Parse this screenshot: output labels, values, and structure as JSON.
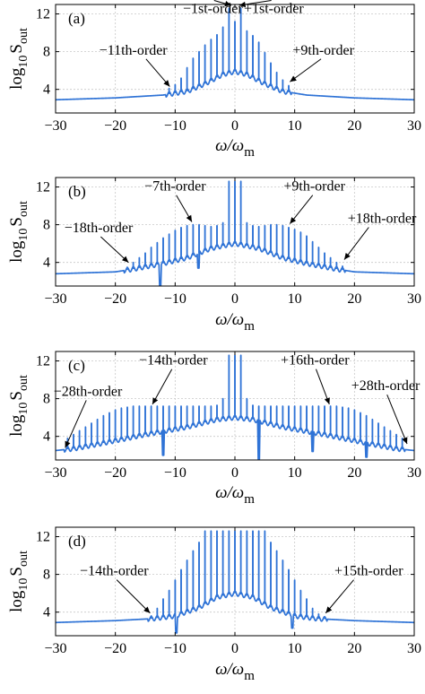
{
  "figure": {
    "ylabel_main": "log",
    "ylabel_sub": "10",
    "ylabel_S": "S",
    "ylabel_S_sub": "out",
    "xlabel_omega": "ω/ω",
    "xlabel_sub": "m"
  },
  "chart_data": [
    {
      "type": "line",
      "panel_label": "(a)",
      "xlim": [
        -30,
        30
      ],
      "ylim": [
        1.5,
        13
      ],
      "xticks": [
        "-30",
        "-20",
        "-10",
        "0",
        "10",
        "20",
        "30"
      ],
      "yticks": [
        "4",
        "8",
        "12"
      ],
      "grid": true,
      "series": [
        {
          "baseline": {
            "x": [
              -30,
              -20,
              -12,
              -8,
              -5,
              -2,
              0,
              2,
              5,
              8,
              12,
              20,
              30
            ],
            "y": [
              2.9,
              3.1,
              3.4,
              3.8,
              4.6,
              5.6,
              5.9,
              5.6,
              4.6,
              3.8,
              3.4,
              3.1,
              2.9
            ]
          },
          "peaks": [
            {
              "order": -11,
              "y": 4.1
            },
            {
              "order": -10,
              "y": 4.5
            },
            {
              "order": -9,
              "y": 5.2
            },
            {
              "order": -8,
              "y": 6.3
            },
            {
              "order": -7,
              "y": 7.3
            },
            {
              "order": -6,
              "y": 8.0
            },
            {
              "order": -5,
              "y": 8.7
            },
            {
              "order": -4,
              "y": 9.3
            },
            {
              "order": -3,
              "y": 9.8
            },
            {
              "order": -2,
              "y": 10.6
            },
            {
              "order": -1,
              "y": 12.6
            },
            {
              "order": 0,
              "y": 11.2
            },
            {
              "order": 1,
              "y": 12.6
            },
            {
              "order": 2,
              "y": 10.2
            },
            {
              "order": 3,
              "y": 9.7
            },
            {
              "order": 4,
              "y": 9.0
            },
            {
              "order": 5,
              "y": 7.9
            },
            {
              "order": 6,
              "y": 6.8
            },
            {
              "order": 7,
              "y": 5.8
            },
            {
              "order": 8,
              "y": 5.0
            },
            {
              "order": 9,
              "y": 4.4
            }
          ]
        }
      ],
      "annotations": [
        {
          "text": "−1st-order",
          "x": -3.7,
          "y": 12.1,
          "arrow_to": [
            -0.6,
            12.9
          ]
        },
        {
          "text": "+1st-order",
          "x": 6.5,
          "y": 12.1,
          "arrow_to": [
            0.7,
            12.9
          ]
        },
        {
          "text": "−11th-order",
          "x": -17,
          "y": 7.7,
          "arrow_to": [
            -10.9,
            4.3
          ]
        },
        {
          "text": "+9th-order",
          "x": 14.8,
          "y": 7.7,
          "arrow_to": [
            9.2,
            4.8
          ]
        }
      ]
    },
    {
      "type": "line",
      "panel_label": "(b)",
      "xlim": [
        -30,
        30
      ],
      "ylim": [
        1.5,
        13
      ],
      "xticks": [
        "-30",
        "-20",
        "-10",
        "0",
        "10",
        "20",
        "30"
      ],
      "yticks": [
        "4",
        "8",
        "12"
      ],
      "grid": true,
      "series": [
        {
          "baseline": {
            "x": [
              -30,
              -20,
              -17,
              -12,
              -8,
              -4,
              -1,
              0,
              1,
              4,
              8,
              12,
              17,
              20,
              30
            ],
            "y": [
              2.8,
              3.0,
              3.3,
              3.9,
              4.5,
              5.5,
              5.9,
              6.0,
              5.9,
              5.5,
              4.5,
              3.9,
              3.3,
              3.0,
              2.8
            ]
          },
          "dips": [
            {
              "x": -12.5,
              "y": 1.5
            },
            {
              "x": -6.1,
              "y": 3.4
            }
          ],
          "peaks": [
            {
              "order": -18,
              "y": 3.5
            },
            {
              "order": -17,
              "y": 4.0
            },
            {
              "order": -16,
              "y": 4.5
            },
            {
              "order": -15,
              "y": 5.0
            },
            {
              "order": -14,
              "y": 5.6
            },
            {
              "order": -13,
              "y": 6.1
            },
            {
              "order": -12,
              "y": 6.6
            },
            {
              "order": -11,
              "y": 7.0
            },
            {
              "order": -10,
              "y": 7.4
            },
            {
              "order": -9,
              "y": 7.7
            },
            {
              "order": -8,
              "y": 7.9
            },
            {
              "order": -7,
              "y": 8.0
            },
            {
              "order": -6,
              "y": 8.0
            },
            {
              "order": -5,
              "y": 7.9
            },
            {
              "order": -4,
              "y": 7.8
            },
            {
              "order": -3,
              "y": 7.9
            },
            {
              "order": -2,
              "y": 8.2
            },
            {
              "order": -1,
              "y": 12.6
            },
            {
              "order": 0,
              "y": 12.6
            },
            {
              "order": 1,
              "y": 12.6
            },
            {
              "order": 2,
              "y": 8.2
            },
            {
              "order": 3,
              "y": 7.9
            },
            {
              "order": 4,
              "y": 7.8
            },
            {
              "order": 5,
              "y": 7.9
            },
            {
              "order": 6,
              "y": 8.0
            },
            {
              "order": 7,
              "y": 8.0
            },
            {
              "order": 8,
              "y": 7.9
            },
            {
              "order": 9,
              "y": 7.7
            },
            {
              "order": 10,
              "y": 7.5
            },
            {
              "order": 11,
              "y": 7.2
            },
            {
              "order": 12,
              "y": 6.8
            },
            {
              "order": 13,
              "y": 6.2
            },
            {
              "order": 14,
              "y": 5.6
            },
            {
              "order": 15,
              "y": 5.0
            },
            {
              "order": 16,
              "y": 4.5
            },
            {
              "order": 17,
              "y": 4.0
            },
            {
              "order": 18,
              "y": 3.6
            }
          ]
        }
      ],
      "annotations": [
        {
          "text": "−7th-order",
          "x": -10,
          "y": 11.6,
          "arrow_to": [
            -7.2,
            8.3
          ]
        },
        {
          "text": "+9th-order",
          "x": 13.3,
          "y": 11.6,
          "arrow_to": [
            9.2,
            8.1
          ]
        },
        {
          "text": "−18th-order",
          "x": -22.8,
          "y": 7.2,
          "arrow_to": [
            -17.8,
            4.0
          ]
        },
        {
          "text": "+18th-order",
          "x": 24.6,
          "y": 8.2,
          "arrow_to": [
            18.3,
            4.3
          ]
        }
      ]
    },
    {
      "type": "line",
      "panel_label": "(c)",
      "xlim": [
        -30,
        30
      ],
      "ylim": [
        1.5,
        13
      ],
      "xticks": [
        "-30",
        "-20",
        "-10",
        "0",
        "10",
        "20",
        "30"
      ],
      "yticks": [
        "4",
        "8",
        "12"
      ],
      "grid": true,
      "series": [
        {
          "baseline": {
            "x": [
              -30,
              -27,
              -22,
              -15,
              -8,
              -3,
              0,
              3,
              8,
              15,
              22,
              27,
              30
            ],
            "y": [
              2.5,
              2.7,
              3.3,
              4.2,
              5.0,
              5.8,
              6.0,
              5.8,
              5.0,
              4.2,
              3.3,
              2.7,
              2.5
            ]
          },
          "dips": [
            {
              "x": -12,
              "y": 2.0
            },
            {
              "x": 4,
              "y": 1.6
            },
            {
              "x": 13,
              "y": 2.4
            },
            {
              "x": 22,
              "y": 1.8
            }
          ],
          "peaks": [
            {
              "order": -28,
              "y": 3.8
            },
            {
              "order": -27,
              "y": 4.2
            },
            {
              "order": -26,
              "y": 4.6
            },
            {
              "order": -25,
              "y": 5.0
            },
            {
              "order": -24,
              "y": 5.4
            },
            {
              "order": -23,
              "y": 5.8
            },
            {
              "order": -22,
              "y": 6.2
            },
            {
              "order": -21,
              "y": 6.5
            },
            {
              "order": -20,
              "y": 6.8
            },
            {
              "order": -19,
              "y": 7.0
            },
            {
              "order": -18,
              "y": 7.1
            },
            {
              "order": -17,
              "y": 7.2
            },
            {
              "order": -16,
              "y": 7.2
            },
            {
              "order": -15,
              "y": 7.2
            },
            {
              "order": -14,
              "y": 7.2
            },
            {
              "order": -13,
              "y": 7.2
            },
            {
              "order": -12,
              "y": 7.2
            },
            {
              "order": -11,
              "y": 7.2
            },
            {
              "order": -10,
              "y": 7.2
            },
            {
              "order": -9,
              "y": 7.2
            },
            {
              "order": -8,
              "y": 7.2
            },
            {
              "order": -7,
              "y": 7.2
            },
            {
              "order": -6,
              "y": 7.2
            },
            {
              "order": -5,
              "y": 7.2
            },
            {
              "order": -4,
              "y": 7.2
            },
            {
              "order": -3,
              "y": 7.3
            },
            {
              "order": -2,
              "y": 8.0
            },
            {
              "order": -1,
              "y": 12.6
            },
            {
              "order": 0,
              "y": 12.6
            },
            {
              "order": 1,
              "y": 12.6
            },
            {
              "order": 2,
              "y": 8.0
            },
            {
              "order": 3,
              "y": 7.3
            },
            {
              "order": 4,
              "y": 7.2
            },
            {
              "order": 5,
              "y": 7.2
            },
            {
              "order": 6,
              "y": 7.2
            },
            {
              "order": 7,
              "y": 7.2
            },
            {
              "order": 8,
              "y": 7.2
            },
            {
              "order": 9,
              "y": 7.2
            },
            {
              "order": 10,
              "y": 7.2
            },
            {
              "order": 11,
              "y": 7.2
            },
            {
              "order": 12,
              "y": 7.2
            },
            {
              "order": 13,
              "y": 7.2
            },
            {
              "order": 14,
              "y": 7.2
            },
            {
              "order": 15,
              "y": 7.2
            },
            {
              "order": 16,
              "y": 7.2
            },
            {
              "order": 17,
              "y": 7.2
            },
            {
              "order": 18,
              "y": 7.1
            },
            {
              "order": 19,
              "y": 7.0
            },
            {
              "order": 20,
              "y": 6.8
            },
            {
              "order": 21,
              "y": 6.5
            },
            {
              "order": 22,
              "y": 6.2
            },
            {
              "order": 23,
              "y": 5.8
            },
            {
              "order": 24,
              "y": 5.4
            },
            {
              "order": 25,
              "y": 5.0
            },
            {
              "order": 26,
              "y": 4.6
            },
            {
              "order": 27,
              "y": 4.2
            },
            {
              "order": 28,
              "y": 3.8
            }
          ]
        }
      ],
      "annotations": [
        {
          "text": "−14th-order",
          "x": -10.3,
          "y": 11.6,
          "arrow_to": [
            -13.8,
            7.4
          ]
        },
        {
          "text": "+16th-order",
          "x": 13.4,
          "y": 11.6,
          "arrow_to": [
            15.8,
            7.4
          ]
        },
        {
          "text": "−28th-order",
          "x": -24.6,
          "y": 8.3,
          "arrow_to": [
            -28.4,
            2.8
          ]
        },
        {
          "text": "+28th-order",
          "x": 25.2,
          "y": 8.9,
          "arrow_to": [
            28.8,
            3.2
          ]
        }
      ]
    },
    {
      "type": "line",
      "panel_label": "(d)",
      "xlim": [
        -30,
        30
      ],
      "ylim": [
        1.5,
        13
      ],
      "xticks": [
        "-30",
        "-20",
        "-10",
        "0",
        "10",
        "20",
        "30"
      ],
      "yticks": [
        "4",
        "8",
        "12"
      ],
      "grid": true,
      "series": [
        {
          "baseline": {
            "x": [
              -30,
              -20,
              -14,
              -10,
              -6,
              -3,
              0,
              3,
              6,
              10,
              14,
              20,
              30
            ],
            "y": [
              2.9,
              3.1,
              3.3,
              3.6,
              4.5,
              5.6,
              6.0,
              5.6,
              4.5,
              3.6,
              3.3,
              3.1,
              2.9
            ]
          },
          "dips": [
            {
              "x": -9.8,
              "y": 1.8
            },
            {
              "x": 9.6,
              "y": 2.3
            }
          ],
          "peaks": [
            {
              "order": -14,
              "y": 3.6
            },
            {
              "order": -13,
              "y": 4.4
            },
            {
              "order": -12,
              "y": 5.4
            },
            {
              "order": -11,
              "y": 6.3
            },
            {
              "order": -10,
              "y": 7.4
            },
            {
              "order": -9,
              "y": 8.5
            },
            {
              "order": -8,
              "y": 9.5
            },
            {
              "order": -7,
              "y": 10.5
            },
            {
              "order": -6,
              "y": 11.4
            },
            {
              "order": -5,
              "y": 12.6
            },
            {
              "order": -4,
              "y": 12.6
            },
            {
              "order": -3,
              "y": 12.6
            },
            {
              "order": -2,
              "y": 12.6
            },
            {
              "order": -1,
              "y": 12.6
            },
            {
              "order": 0,
              "y": 12.6
            },
            {
              "order": 1,
              "y": 12.6
            },
            {
              "order": 2,
              "y": 12.6
            },
            {
              "order": 3,
              "y": 12.6
            },
            {
              "order": 4,
              "y": 12.6
            },
            {
              "order": 5,
              "y": 12.6
            },
            {
              "order": 6,
              "y": 11.4
            },
            {
              "order": 7,
              "y": 10.5
            },
            {
              "order": 8,
              "y": 9.5
            },
            {
              "order": 9,
              "y": 8.5
            },
            {
              "order": 10,
              "y": 7.4
            },
            {
              "order": 11,
              "y": 6.3
            },
            {
              "order": 12,
              "y": 5.4
            },
            {
              "order": 13,
              "y": 4.4
            },
            {
              "order": 14,
              "y": 3.8
            },
            {
              "order": 15,
              "y": 3.4
            }
          ]
        }
      ],
      "annotations": [
        {
          "text": "−14th-order",
          "x": -20.2,
          "y": 7.9,
          "arrow_to": [
            -14.2,
            3.9
          ]
        },
        {
          "text": "+15th-order",
          "x": 22.4,
          "y": 7.9,
          "arrow_to": [
            15.2,
            3.9
          ]
        }
      ]
    }
  ],
  "colors": {
    "line": "#2f73d6",
    "grid": "#c8c8c8",
    "axis": "#000000",
    "text": "#000000"
  }
}
